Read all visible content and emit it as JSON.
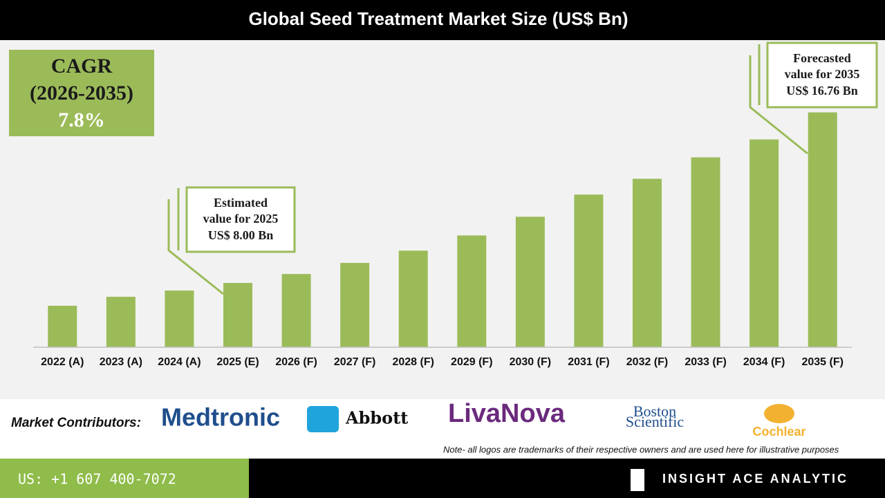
{
  "chart_data": {
    "type": "bar",
    "title": "Global Seed Treatment Market Size (US$ Bn)",
    "categories": [
      "2022 (A)",
      "2023 (A)",
      "2024 (A)",
      "2025 (E)",
      "2026 (F)",
      "2027 (F)",
      "2028 (F)",
      "2029 (F)",
      "2030 (F)",
      "2031 (F)",
      "2032 (F)",
      "2033 (F)",
      "2034 (F)",
      "2035 (F)"
    ],
    "values": [
      6.83,
      7.29,
      7.61,
      8.0,
      8.46,
      9.03,
      9.66,
      10.44,
      11.4,
      12.54,
      13.35,
      14.45,
      15.37,
      16.76
    ],
    "color": "#9bbb59",
    "ylim": [
      4.7,
      20.4
    ],
    "cagr": [
      "CAGR",
      "(2026-2035)",
      "7.8%"
    ],
    "annotations": [
      {
        "lines": [
          "Estimated",
          "value for 2025",
          "US$ 8.00 Bn"
        ]
      },
      {
        "lines": [
          "Forecasted",
          "value for 2035",
          "US$ 16.76 Bn"
        ]
      }
    ]
  },
  "footer": {
    "contributors_label": "Market Contributors:",
    "logos": [
      "Medtronic",
      "Abbott",
      "LivaNova",
      "Boston",
      "Scientific",
      "Cochlear"
    ],
    "note": "Note- all logos are trademarks of their respective owners and are used here for illustrative purposes",
    "phone": "US: +1 607 400-7072",
    "brand": "INSIGHT ACE ANALYTIC"
  }
}
